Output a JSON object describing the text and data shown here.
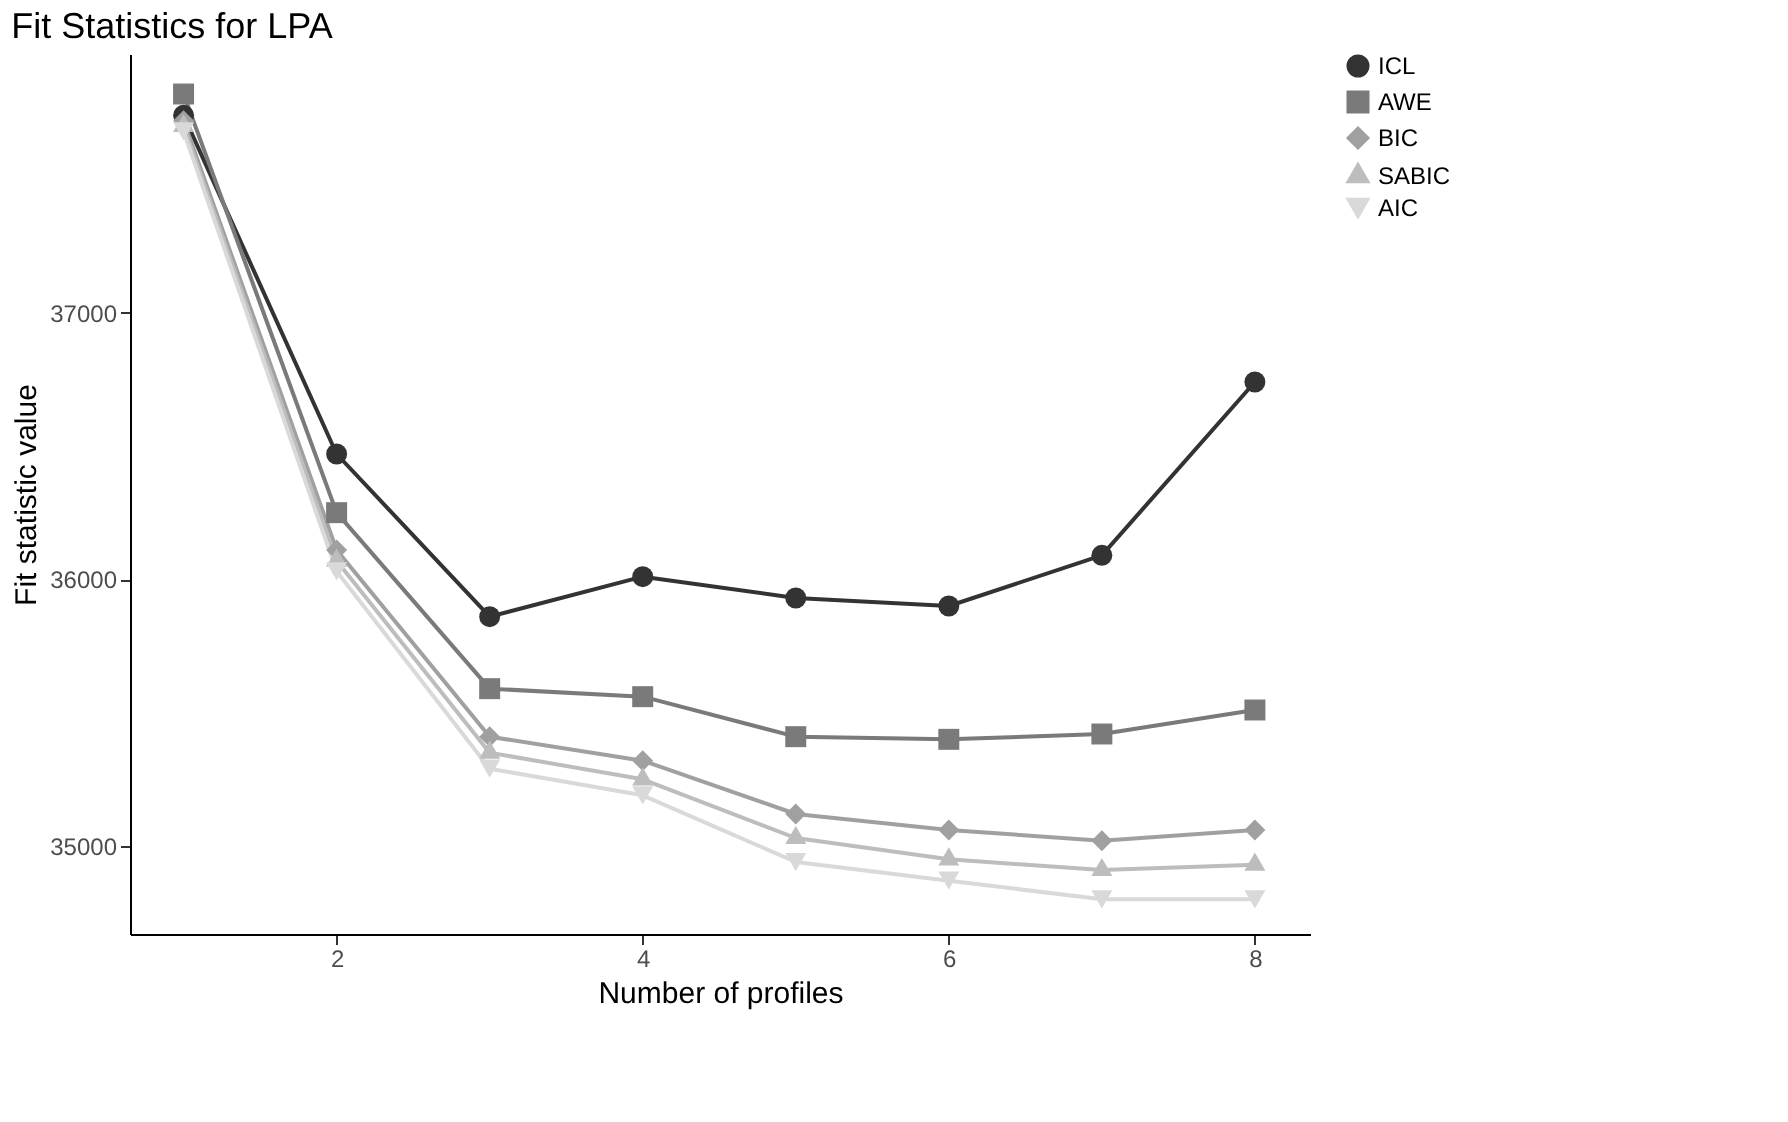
{
  "chart_data": {
    "type": "line",
    "title": "Fit Statistics for LPA",
    "xlabel": "Number of profiles",
    "ylabel": "Fit statistic value",
    "x": [
      1,
      2,
      3,
      4,
      5,
      6,
      7,
      8
    ],
    "series": [
      {
        "name": "ICL",
        "color": "#333333",
        "marker": "circle",
        "values": [
          37740,
          36470,
          35860,
          36010,
          35930,
          35900,
          36090,
          36740
        ]
      },
      {
        "name": "AWE",
        "color": "#7a7a7a",
        "marker": "square",
        "values": [
          37820,
          36250,
          35590,
          35560,
          35410,
          35400,
          35420,
          35510
        ]
      },
      {
        "name": "BIC",
        "color": "#a0a0a0",
        "marker": "diamond",
        "values": [
          37720,
          36110,
          35410,
          35320,
          35120,
          35060,
          35020,
          35060
        ]
      },
      {
        "name": "SABIC",
        "color": "#bdbdbd",
        "marker": "triangle",
        "values": [
          37700,
          36070,
          35350,
          35250,
          35030,
          34950,
          34910,
          34930
        ]
      },
      {
        "name": "AIC",
        "color": "#d9d9d9",
        "marker": "triangle-down",
        "values": [
          37680,
          36030,
          35290,
          35190,
          34940,
          34870,
          34800,
          34800
        ]
      }
    ],
    "xlim": [
      0.65,
      8.36
    ],
    "ylim": [
      34670,
      37970
    ],
    "xticks": [
      2,
      4,
      6,
      8
    ],
    "yticks": [
      35000,
      36000,
      37000
    ],
    "grid": false,
    "legend": "right",
    "line_style": "solid"
  }
}
